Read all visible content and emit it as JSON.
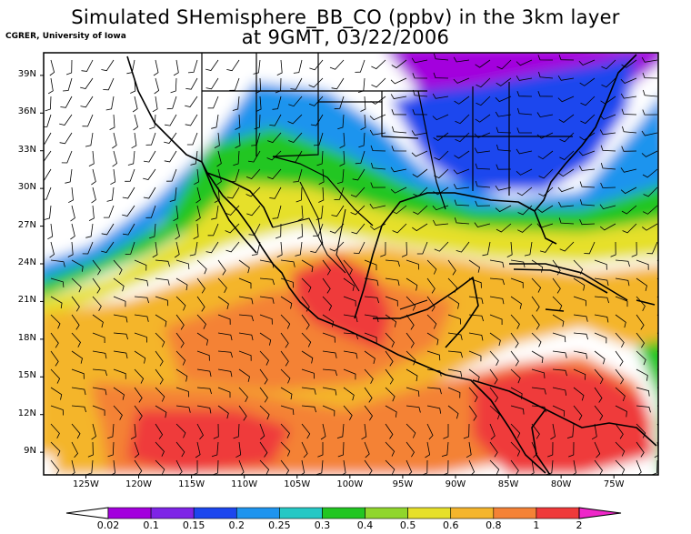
{
  "map": {
    "title_line1": "Simulated SHemisphere_BB_CO (ppbv) in the 3km layer",
    "title_line2": "at 9GMT, 03/22/2006",
    "credit": "CGRER, University of Iowa",
    "lat_labels": [
      "39N",
      "36N",
      "33N",
      "30N",
      "27N",
      "24N",
      "21N",
      "18N",
      "15N",
      "12N",
      "9N"
    ],
    "lon_labels": [
      "125W",
      "120W",
      "115W",
      "110W",
      "105W",
      "100W",
      "95W",
      "90W",
      "85W",
      "80W",
      "75W"
    ],
    "lat_values": [
      39,
      36,
      33,
      30,
      27,
      24,
      21,
      18,
      15,
      12,
      9
    ],
    "lon_values": [
      -125,
      -120,
      -115,
      -110,
      -105,
      -100,
      -95,
      -90,
      -85,
      -80,
      -75
    ],
    "extent": {
      "lon_min": -129,
      "lon_max": -70.8,
      "lat_min": 7.2,
      "lat_max": 40.8
    }
  },
  "legend": {
    "unit": "ppbv",
    "labels": [
      "0.02",
      "0.1",
      "0.15",
      "0.2",
      "0.25",
      "0.3",
      "0.4",
      "0.5",
      "0.6",
      "0.8",
      "1",
      "2"
    ],
    "colors": [
      "#a300dd",
      "#7e24e6",
      "#1c46ee",
      "#1e94ee",
      "#25c8c5",
      "#22c622",
      "#90d62c",
      "#e6e02a",
      "#f4b52c",
      "#f48236",
      "#ef3a3a",
      "#ef27c9"
    ],
    "under_color": "#ffffff",
    "over_color": "#ef27c9"
  }
}
